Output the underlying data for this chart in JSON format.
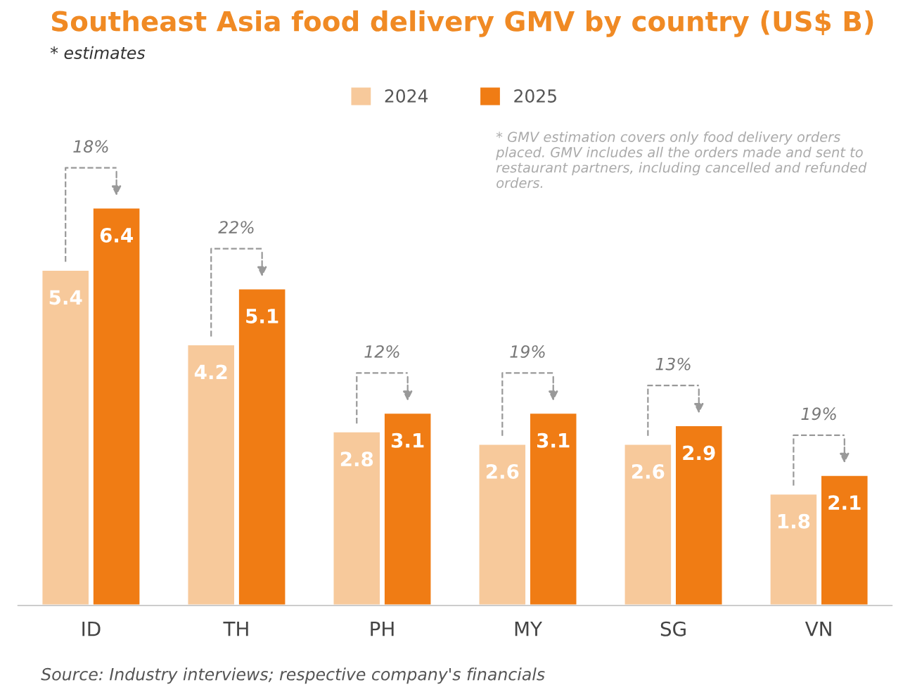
{
  "chart_data": {
    "type": "bar",
    "title": "Southeast Asia food delivery GMV by country (US$ B)",
    "subtitle": "* estimates",
    "categories": [
      "ID",
      "TH",
      "PH",
      "MY",
      "SG",
      "VN"
    ],
    "series": [
      {
        "name": "2024",
        "color": "#f7c99b",
        "values": [
          5.4,
          4.2,
          2.8,
          2.6,
          2.6,
          1.8
        ]
      },
      {
        "name": "2025",
        "color": "#f07c14",
        "values": [
          6.4,
          5.1,
          3.1,
          3.1,
          2.9,
          2.1
        ]
      }
    ],
    "data_labels": true,
    "legend": "top",
    "annotations": [
      "18%",
      "22%",
      "12%",
      "19%",
      "13%",
      "19%",
      "* GMV estimation covers only food delivery orders placed. GMV includes all the orders made and sent to restaurant partners, including cancelled and refunded orders.",
      "Source: Industry interviews; respective company's financials"
    ]
  }
}
